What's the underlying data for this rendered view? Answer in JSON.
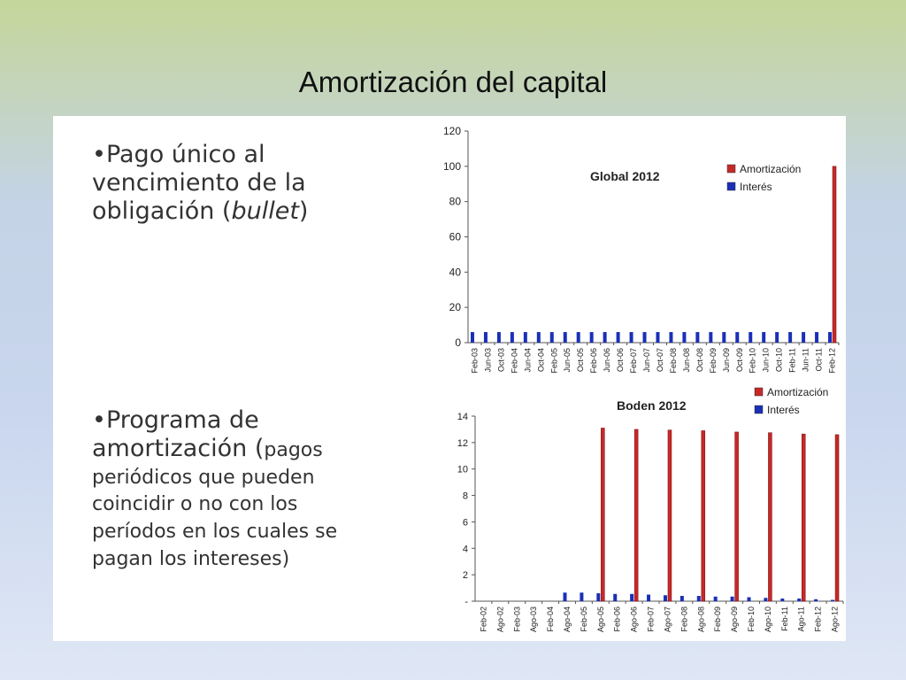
{
  "slide": {
    "title": "Amortización del capital"
  },
  "bullets": {
    "b1_marker": "•",
    "b1_line1": "Pago único al",
    "b1_line2": "vencimiento de la",
    "b1_line3_a": "obligación (",
    "b1_line3_b": "bullet",
    "b1_line3_c": ")",
    "b2_marker": "•",
    "b2_line1": "Programa de",
    "b2_line2_a": "amortización (",
    "b2_line2_b": "pagos",
    "b2_line3": "periódicos que pueden",
    "b2_line4": "coincidir o no con los",
    "b2_line5": "períodos en los cuales se",
    "b2_line6": "pagan los intereses)"
  },
  "chart_data": [
    {
      "type": "bar",
      "title": "Global 2012",
      "categories": [
        "Feb-03",
        "Jun-03",
        "Oct-03",
        "Feb-04",
        "Jun-04",
        "Oct-04",
        "Feb-05",
        "Jun-05",
        "Oct-05",
        "Feb-06",
        "Jun-06",
        "Oct-06",
        "Feb-07",
        "Jun-07",
        "Oct-07",
        "Feb-08",
        "Jun-08",
        "Oct-08",
        "Feb-09",
        "Jun-09",
        "Oct-09",
        "Feb-10",
        "Jun-10",
        "Oct-10",
        "Feb-11",
        "Jun-11",
        "Oct-11",
        "Feb-12"
      ],
      "yticks": [
        "0",
        "20",
        "40",
        "60",
        "80",
        "100",
        "120"
      ],
      "ylim": [
        0,
        120
      ],
      "series": [
        {
          "name": "Amortización",
          "color": "#c62828",
          "values": [
            0,
            0,
            0,
            0,
            0,
            0,
            0,
            0,
            0,
            0,
            0,
            0,
            0,
            0,
            0,
            0,
            0,
            0,
            0,
            0,
            0,
            0,
            0,
            0,
            0,
            0,
            0,
            100
          ]
        },
        {
          "name": "Interés",
          "color": "#1a2fb8",
          "values": [
            6,
            6,
            6,
            6,
            6,
            6,
            6,
            6,
            6,
            6,
            6,
            6,
            6,
            6,
            6,
            6,
            6,
            6,
            6,
            6,
            6,
            6,
            6,
            6,
            6,
            6,
            6,
            6
          ]
        }
      ],
      "legend": "top-right",
      "grid": false
    },
    {
      "type": "bar",
      "title": "Boden 2012",
      "categories": [
        "Feb-02",
        "Ago-02",
        "Feb-03",
        "Ago-03",
        "Feb-04",
        "Ago-04",
        "Feb-05",
        "Ago-05",
        "Feb-06",
        "Ago-06",
        "Feb-07",
        "Ago-07",
        "Feb-08",
        "Ago-08",
        "Feb-09",
        "Ago-09",
        "Feb-10",
        "Ago-10",
        "Feb-11",
        "Ago-11",
        "Feb-12",
        "Ago-12"
      ],
      "yticks": [
        "-",
        "2",
        "4",
        "6",
        "8",
        "10",
        "12",
        "14"
      ],
      "ylim": [
        0,
        14
      ],
      "series": [
        {
          "name": "Amortización",
          "color": "#c62828",
          "values": [
            0,
            0,
            0,
            0,
            0,
            0,
            0,
            13.1,
            0,
            13.0,
            0,
            12.95,
            0,
            12.9,
            0,
            12.8,
            0,
            12.75,
            0,
            12.65,
            0,
            12.6
          ]
        },
        {
          "name": "Interés",
          "color": "#1a2fb8",
          "values": [
            0,
            0,
            0,
            0,
            0,
            0.65,
            0.65,
            0.6,
            0.55,
            0.55,
            0.5,
            0.45,
            0.4,
            0.4,
            0.35,
            0.35,
            0.3,
            0.25,
            0.2,
            0.2,
            0.15,
            0.1
          ]
        }
      ],
      "legend": "top-right",
      "grid": false
    }
  ]
}
